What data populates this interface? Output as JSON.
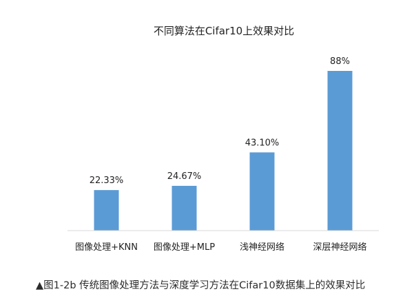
{
  "chart_data": {
    "type": "bar",
    "title": "不同算法在Cifar10上效果对比",
    "categories": [
      "图像处理+KNN",
      "图像处理+MLP",
      "浅神经网络",
      "深层神经网络"
    ],
    "values": [
      22.33,
      24.67,
      43.1,
      88
    ],
    "data_labels": [
      "22.33%",
      "24.67%",
      "43.10%",
      "88%"
    ],
    "xlabel": "",
    "ylabel": "",
    "ylim": [
      0,
      100
    ],
    "grid": false,
    "bar_color": "#5b9bd5",
    "axis_color": "#d9d9d9"
  },
  "caption": "▲图1-2b 传统图像处理方法与深度学习方法在Cifar10数据集上的效果对比"
}
